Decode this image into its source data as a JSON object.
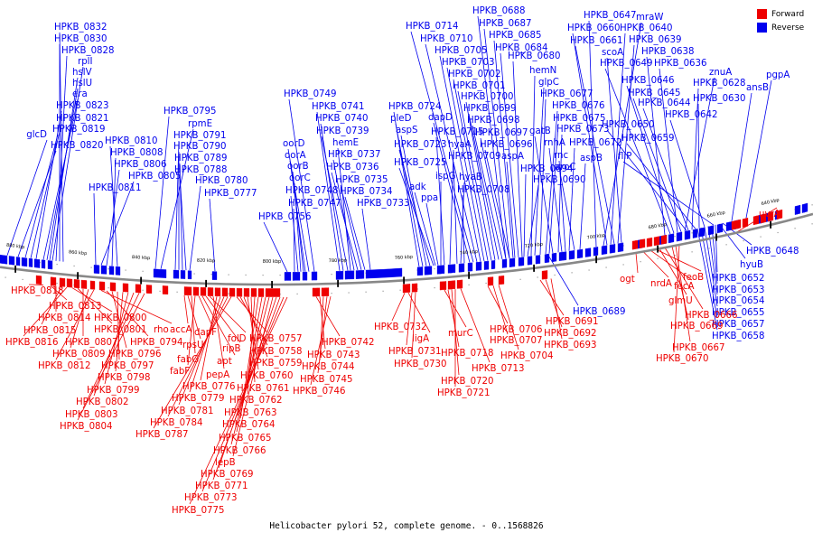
{
  "legend": [
    {
      "label": "Forward",
      "color": "#ee0000"
    },
    {
      "label": "Reverse",
      "color": "#0000ee"
    }
  ],
  "colors": {
    "forward": "#ee0000",
    "reverse": "#0000ee",
    "backbone": "#888888"
  },
  "caption": "Helicobacter pylori 52, complete genome. - 0..1568826",
  "scale_labels": [
    "880 kbp",
    "860 kbp",
    "840 kbp",
    "820 kbp",
    "800 kbp",
    "780 kbp",
    "760 kbp",
    "740 kbp",
    "720 kbp",
    "700 kbp",
    "680 kbp",
    "660 kbp",
    "640 kbp"
  ],
  "reverse_genes": [
    "glcD",
    "HPKB_0820",
    "HPKB_0819",
    "HPKB_0821",
    "HPKB_0823",
    "era",
    "hslU",
    "hslV",
    "rplI",
    "HPKB_0828",
    "HPKB_0830",
    "HPKB_0832",
    "HPKB_0811",
    "HPKB_0805",
    "HPKB_0806",
    "HPKB_0808",
    "HPKB_0810",
    "HPKB_0795",
    "rpmE",
    "HPKB_0791",
    "HPKB_0790",
    "HPKB_0789",
    "HPKB_0788",
    "HPKB_0780",
    "HPKB_0777",
    "HPKB_0756",
    "HPKB_0747",
    "HPKB_0748",
    "oorC",
    "oorB",
    "oorA",
    "oorD",
    "HPKB_0749",
    "HPKB_0741",
    "HPKB_0740",
    "HPKB_0739",
    "hemE",
    "HPKB_0737",
    "HPKB_0736",
    "HPKB_0735",
    "HPKB_0734",
    "HPKB_0733",
    "HPKB_0724",
    "pleD",
    "aspS",
    "HPKB_0723",
    "HPKB_0725",
    "adk",
    "ppa",
    "ispG",
    "HPKB_0715",
    "hyaA",
    "HPKB_0709",
    "hyaB",
    "HPKB_0708",
    "dapD",
    "HPKB_0714",
    "HPKB_0710",
    "HPKB_0705",
    "HPKB_0703",
    "HPKB_0702",
    "HPKB_0701",
    "HPKB_0700",
    "HPKB_0699",
    "HPKB_0698",
    "HPKB_0697",
    "HPKB_0696",
    "aspA",
    "HPKB_0694",
    "HPKB_0690",
    "HPKB_0688",
    "HPKB_0687",
    "HPKB_0685",
    "HPKB_0684",
    "HPKB_0680",
    "hemN",
    "glpC",
    "HPKB_0677",
    "HPKB_0676",
    "HPKB_0675",
    "gatB",
    "HPKB_0673",
    "rnhA",
    "rnc",
    "HPKB_0672",
    "aroC",
    "aspB",
    "HPKB_0647",
    "mraW",
    "HPKB_0660",
    "HPKB_0640",
    "HPKB_0661",
    "HPKB_0639",
    "scoA",
    "HPKB_0638",
    "HPKB_0649",
    "HPKB_0636",
    "znuA",
    "HPKB_0646",
    "HPKB_0628",
    "HPKB_0645",
    "HPKB_0630",
    "HPKB_0644",
    "HPKB_0642",
    "HPKB_0650",
    "HPKB_0659",
    "fliP",
    "ansB",
    "pgpA",
    "HPKB_0648",
    "hyuB",
    "HPKB_0652",
    "HPKB_0653",
    "HPKB_0654",
    "HPKB_0655",
    "HPKB_0657",
    "HPKB_0658",
    "HPKB_0689"
  ],
  "forward_genes": [
    "HPKB_0818",
    "HPKB_0813",
    "HPKB_0814",
    "HPKB_0815",
    "HPKB_0816",
    "HPKB_0800",
    "HPKB_0801",
    "HPKB_0807",
    "HPKB_0809",
    "HPKB_0812",
    "rho",
    "HPKB_0794",
    "HPKB_0796",
    "HPKB_0797",
    "HPKB_0798",
    "HPKB_0799",
    "HPKB_0802",
    "HPKB_0803",
    "HPKB_0804",
    "accA",
    "rpsU",
    "fabG",
    "fabF",
    "dapF",
    "apt",
    "ripB",
    "folD",
    "pepA",
    "HPKB_0776",
    "HPKB_0779",
    "HPKB_0781",
    "HPKB_0784",
    "HPKB_0787",
    "HPKB_0757",
    "HPKB_0758",
    "HPKB_0759",
    "HPKB_0760",
    "HPKB_0761",
    "HPKB_0762",
    "HPKB_0763",
    "HPKB_0764",
    "HPKB_0765",
    "HPKB_0766",
    "lepB",
    "HPKB_0769",
    "HPKB_0771",
    "HPKB_0773",
    "HPKB_0775",
    "HPKB_0742",
    "HPKB_0743",
    "HPKB_0744",
    "HPKB_0745",
    "HPKB_0746",
    "HPKB_0732",
    "ligA",
    "HPKB_0731",
    "HPKB_0730",
    "murC",
    "HPKB_0718",
    "HPKB_0720",
    "HPKB_0721",
    "HPKB_0713",
    "HPKB_0706",
    "HPKB_0707",
    "HPKB_0704",
    "HPKB_0691",
    "HPKB_0692",
    "HPKB_0693",
    "ogt",
    "nrdA",
    "fecA",
    "feoB",
    "glmU",
    "HPKB_0666",
    "HPKB_0669",
    "HPKB_0667",
    "HPKB_0670",
    "uvrA"
  ]
}
